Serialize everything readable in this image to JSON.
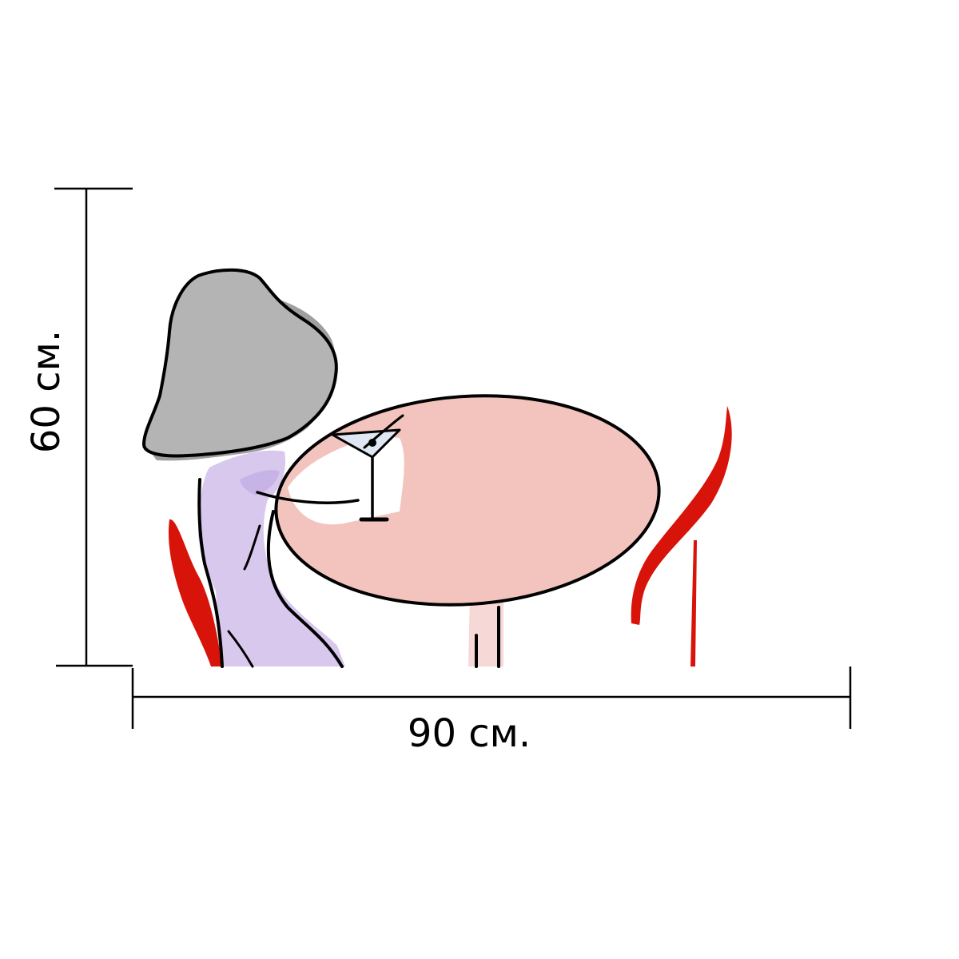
{
  "dimensions": {
    "height_label": "60 см.",
    "width_label": "90 см."
  },
  "colors": {
    "line": "#000000",
    "hair": "#b4b4b4",
    "dress": "#d8c8ee",
    "tabletop": "#f3c3bd",
    "chair": "#d8140a",
    "glass": "#dde6f2"
  },
  "icons": {
    "illustration": "woman-at-cafe-table-illustration"
  }
}
